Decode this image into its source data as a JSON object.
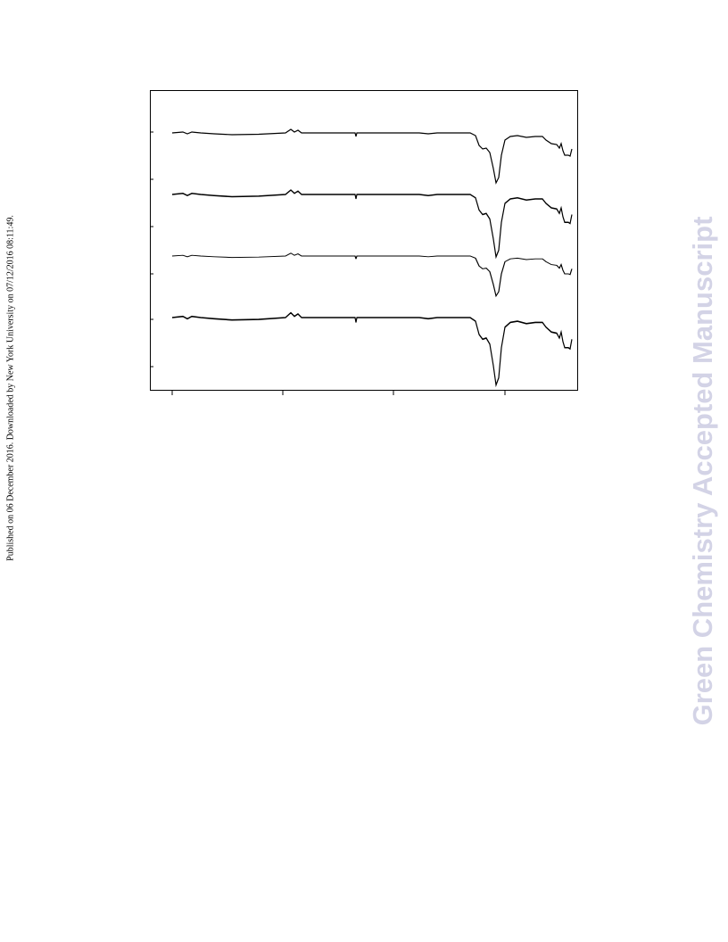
{
  "side_note": "Published on 06 December 2016. Downloaded by New York University on 07/12/2016 08:11:49.",
  "watermark": "Green Chemistry Accepted Manuscript"
}
